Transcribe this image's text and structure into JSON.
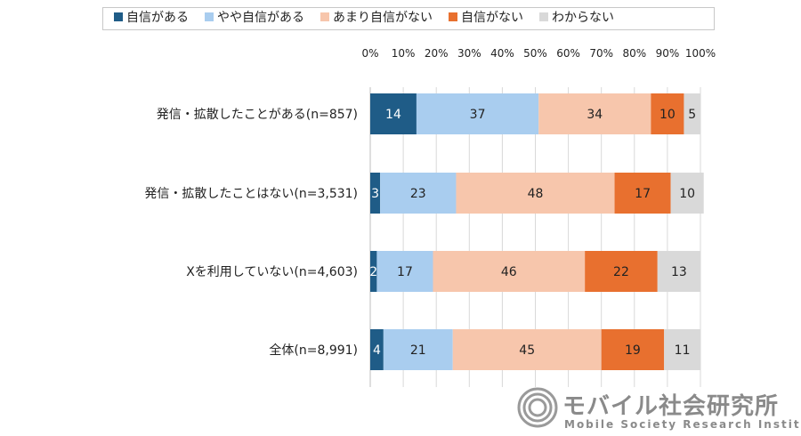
{
  "chart_data": {
    "type": "bar",
    "orientation": "horizontal",
    "stacked": true,
    "percent": true,
    "xlim": [
      0,
      100
    ],
    "xticks": [
      "0%",
      "10%",
      "20%",
      "30%",
      "40%",
      "50%",
      "60%",
      "70%",
      "80%",
      "90%",
      "100%"
    ],
    "legend_position": "top",
    "categories": [
      "発信・拡散したことがある(n=857)",
      "発信・拡散したことはない(n=3,531)",
      "Xを利用していない(n=4,603)",
      "全体(n=8,991)"
    ],
    "series": [
      {
        "name": "自信がある",
        "color": "#1f5c87",
        "text_color": "#ffffff",
        "values": [
          14,
          3,
          2,
          4
        ]
      },
      {
        "name": "やや自信がある",
        "color": "#a9cdef",
        "text_color": "#222222",
        "values": [
          37,
          23,
          17,
          21
        ]
      },
      {
        "name": "あまり自信がない",
        "color": "#f7c6ac",
        "text_color": "#222222",
        "values": [
          34,
          48,
          46,
          45
        ]
      },
      {
        "name": "自信がない",
        "color": "#e8702f",
        "text_color": "#222222",
        "values": [
          10,
          17,
          22,
          19
        ]
      },
      {
        "name": "わからない",
        "color": "#d9d9d9",
        "text_color": "#222222",
        "values": [
          5,
          10,
          13,
          11
        ]
      }
    ]
  },
  "logo": {
    "name": "モバイル社会研究所",
    "subtitle": "Mobile Society Research Institute",
    "color": "#8a8a8a"
  }
}
